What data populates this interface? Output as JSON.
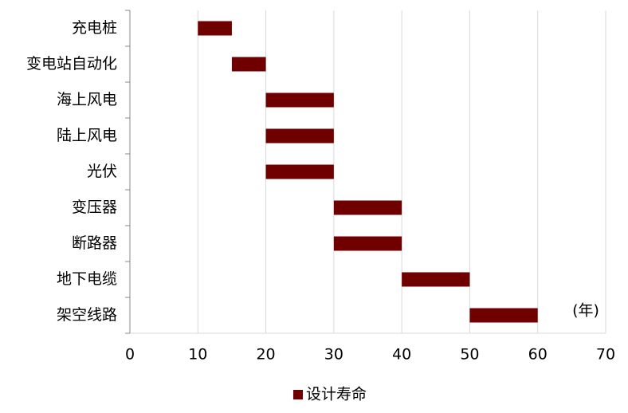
{
  "chart_data": {
    "type": "bar",
    "orientation": "horizontal",
    "categories": [
      "充电桩",
      "变电站自动化",
      "海上风电",
      "陆上风电",
      "光伏",
      "变压器",
      "断路器",
      "地下电缆",
      "架空线路"
    ],
    "series": [
      {
        "name": "设计寿命",
        "color": "#700000",
        "values": [
          [
            10,
            15
          ],
          [
            15,
            20
          ],
          [
            20,
            30
          ],
          [
            20,
            30
          ],
          [
            20,
            30
          ],
          [
            30,
            40
          ],
          [
            30,
            40
          ],
          [
            40,
            50
          ],
          [
            50,
            60
          ]
        ]
      }
    ],
    "xlim": [
      0,
      70
    ],
    "xticks": [
      0,
      10,
      20,
      30,
      40,
      50,
      60,
      70
    ],
    "grid": true,
    "annotation": "(年)",
    "legend": "bottom"
  }
}
